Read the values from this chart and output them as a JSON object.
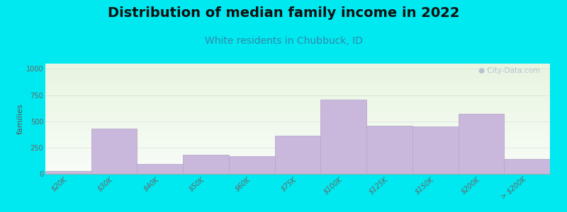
{
  "title": "Distribution of median family income in 2022",
  "subtitle": "White residents in Chubbuck, ID",
  "ylabel": "families",
  "categories": [
    "$20K",
    "$30K",
    "$40K",
    "$50K",
    "$60K",
    "$75K",
    "$100K",
    "$125K",
    "$150K",
    "$200K",
    "> $200K"
  ],
  "values": [
    25,
    430,
    95,
    185,
    165,
    365,
    710,
    455,
    450,
    570,
    140
  ],
  "bar_color": "#c9b8dc",
  "bar_edge_color": "#b8a8cc",
  "outer_bg": "#00e8f0",
  "yticks": [
    0,
    250,
    500,
    750,
    1000
  ],
  "ylim": [
    0,
    1050
  ],
  "title_fontsize": 14,
  "subtitle_fontsize": 10,
  "subtitle_color": "#3388aa",
  "ylabel_fontsize": 8,
  "tick_fontsize": 7,
  "watermark_text": "● City-Data.com",
  "watermark_color": "#aabbcc",
  "grid_color": "#dddddd",
  "bg_top_color": "#e8f5e0",
  "bg_bottom_color": "#f8fdf8"
}
